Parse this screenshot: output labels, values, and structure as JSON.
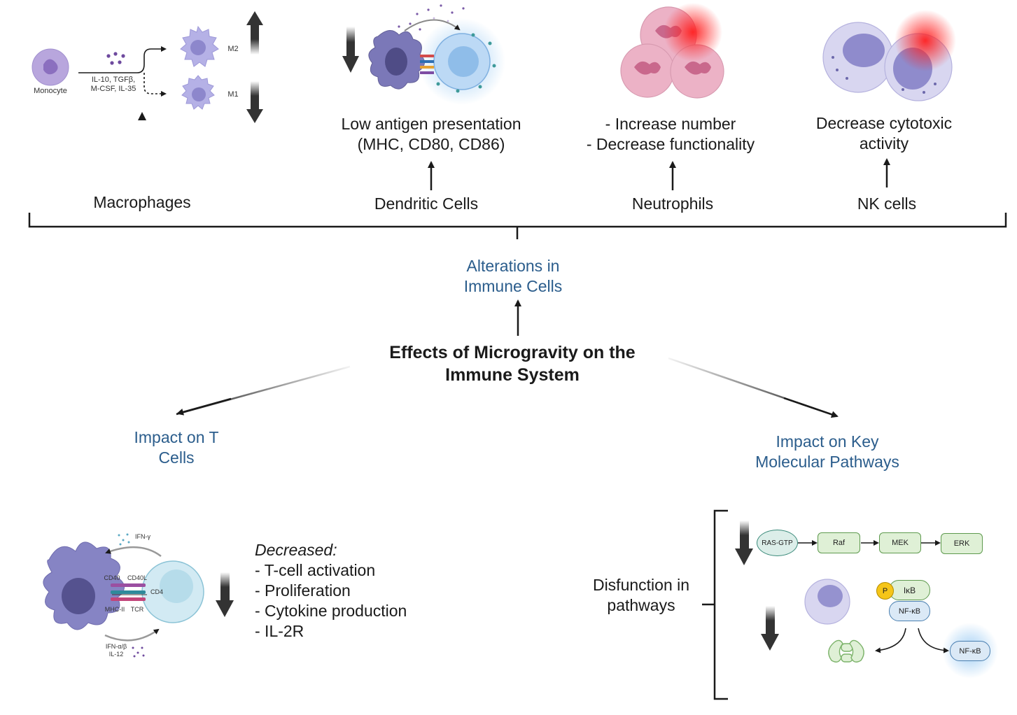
{
  "center": {
    "title_line1": "Effects of Microgravity on the",
    "title_line2": "Immune System"
  },
  "branches": {
    "immune_cells": {
      "line1": "Alterations in",
      "line2": "Immune Cells"
    },
    "t_cells": {
      "line1": "Impact on T",
      "line2": "Cells"
    },
    "pathways": {
      "line1": "Impact on Key",
      "line2": "Molecular Pathways"
    }
  },
  "macrophages": {
    "label": "Macrophages",
    "monocyte": "Monocyte",
    "cytokines_line1": "IL-10, TGFβ,",
    "cytokines_line2": "M-CSF, IL-35",
    "m2": "M2",
    "m1": "M1"
  },
  "dendritic": {
    "label": "Dendritic Cells",
    "effect_line1": "Low antigen presentation",
    "effect_line2": "(MHC, CD80, CD86)"
  },
  "neutrophils": {
    "label": "Neutrophils",
    "effect_line1": "- Increase number",
    "effect_line2": "- Decrease functionality"
  },
  "nk": {
    "label": "NK cells",
    "effect_line1": "Decrease cytotoxic",
    "effect_line2": "activity"
  },
  "tcell_panel": {
    "ifn_gamma": "IFN-γ",
    "cd40": "CD40",
    "cd40l": "CD40L",
    "cd4": "CD4",
    "mhc2": "MHC-II",
    "tcr": "TCR",
    "ifn_ab": "IFN-α/β",
    "il12": "IL-12",
    "decreased_label": "Decreased:",
    "effects": [
      "- T-cell activation",
      "- Proliferation",
      "- Cytokine production",
      "- IL-2R"
    ]
  },
  "pathway_panel": {
    "label_line1": "Disfunction in",
    "label_line2": "pathways",
    "mapk": [
      "RAS-GTP",
      "Raf",
      "MEK",
      "ERK"
    ],
    "p": "P",
    "ikb": "IκB",
    "nfkb": "NF-κB",
    "nfkb_nucleus": "NF-κB"
  },
  "colors": {
    "text_blue": "#2b5d8c",
    "cell_lavender": "#a7a3dc",
    "neutrophil_pink": "#e6a6bd",
    "pathway_green": "#dff0d6",
    "nfkb_blue": "#dbe9f6",
    "highlight_red": "#ff3b3b"
  }
}
